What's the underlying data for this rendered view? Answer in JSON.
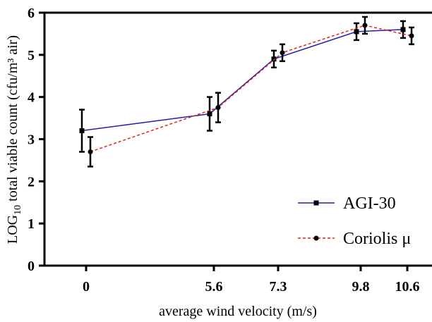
{
  "chart_data": {
    "type": "line",
    "xlabel": "average wind velocity (m/s)",
    "ylabel": "LOG10 total viable count (cfu/m³ air)",
    "ylabel_parts": {
      "pre": "LOG",
      "sub": "10",
      "post": " total viable count (cfu/m³ air)"
    },
    "x_ticks": [
      "0",
      "5.6",
      "7.3",
      "9.8",
      "10.6"
    ],
    "y_ticks": [
      "0",
      "1",
      "2",
      "3",
      "4",
      "5",
      "6"
    ],
    "ylim": [
      0,
      6
    ],
    "x_scale": "categorical-by-position",
    "grid": false,
    "legend_position": "bottom-right",
    "series": [
      {
        "name": "AGI-30",
        "color": "#1f1fa8",
        "line_style": "solid",
        "marker": "square",
        "points": [
          {
            "x": "0",
            "y": 3.2,
            "err": 0.5
          },
          {
            "x": "5.6",
            "y": 3.6,
            "err": 0.4
          },
          {
            "x": "7.3",
            "y": 4.9,
            "err": 0.2
          },
          {
            "x": "9.8",
            "y": 5.55,
            "err": 0.2
          },
          {
            "x": "10.6",
            "y": 5.6,
            "err": 0.2
          }
        ]
      },
      {
        "name": "Coriolis μ",
        "color": "#e8201c",
        "line_style": "dashed",
        "marker": "circle",
        "points": [
          {
            "x": "0",
            "y": 2.7,
            "err": 0.35
          },
          {
            "x": "5.6",
            "y": 3.75,
            "err": 0.35
          },
          {
            "x": "7.3",
            "y": 5.05,
            "err": 0.2
          },
          {
            "x": "9.8",
            "y": 5.7,
            "err": 0.2
          },
          {
            "x": "10.6",
            "y": 5.45,
            "err": 0.2
          }
        ]
      }
    ]
  }
}
